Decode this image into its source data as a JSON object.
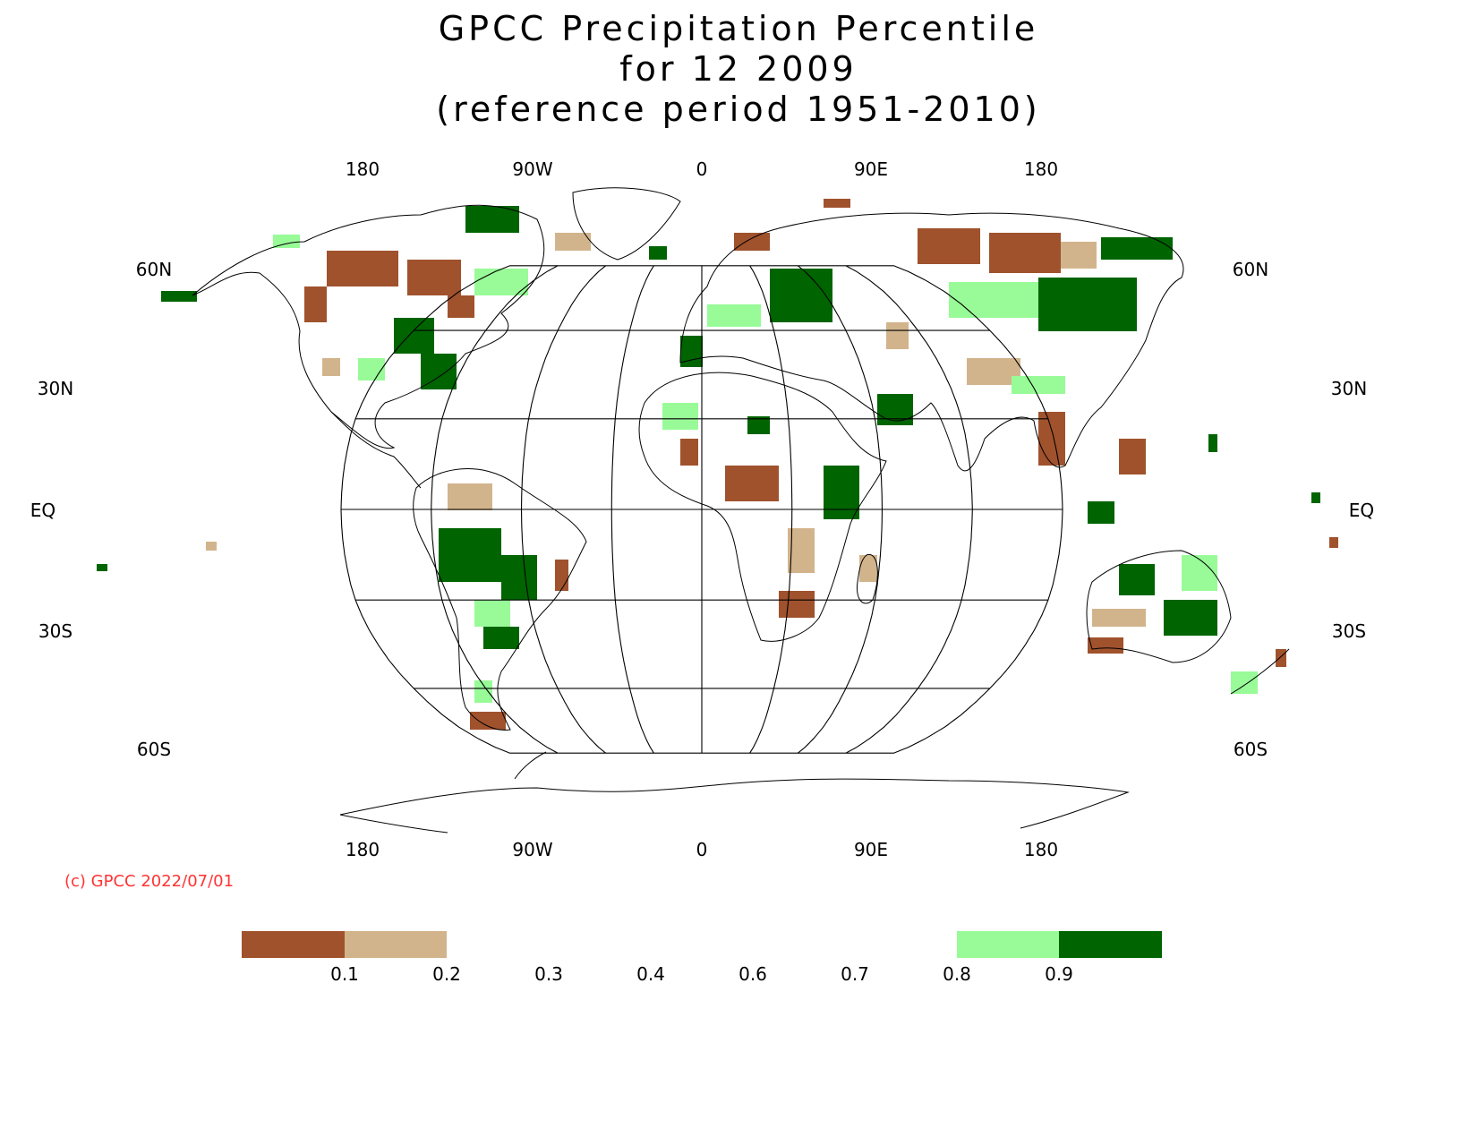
{
  "title": {
    "line1": "GPCC Precipitation Percentile",
    "line2": "for 12 2009",
    "line3": "(reference period 1951-2010)"
  },
  "credit": "(c) GPCC 2022/07/01",
  "map": {
    "projection": "Robinson",
    "longitude_labels_top": [
      "180",
      "90W",
      "0",
      "90E",
      "180"
    ],
    "longitude_labels_bottom": [
      "180",
      "90W",
      "0",
      "90E",
      "180"
    ],
    "latitude_labels": [
      "60N",
      "30N",
      "EQ",
      "30S",
      "60S"
    ],
    "grid": true
  },
  "legend": {
    "colors": {
      "below_0.1": "#a0522d",
      "0.1_to_0.2": "#d2b48c",
      "0.8_to_0.9": "#98fb98",
      "above_0.9": "#006400"
    },
    "tick_labels": [
      "0.1",
      "0.2",
      "0.3",
      "0.4",
      "0.6",
      "0.7",
      "0.8",
      "0.9"
    ]
  }
}
